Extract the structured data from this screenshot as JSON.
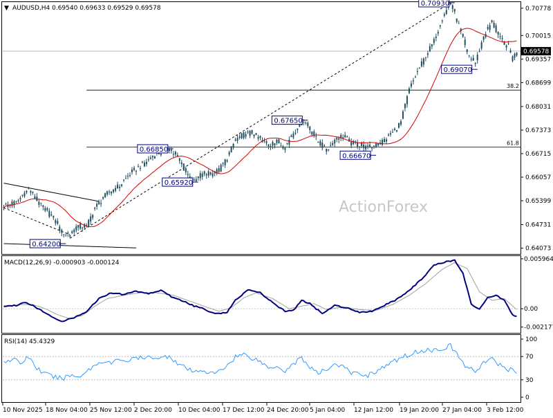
{
  "header": {
    "symbol_arrow": "▼",
    "title": "AUDUSD,H4  0.69540 0.69633 0.69529 0.69578"
  },
  "watermark": "ActionForex",
  "colors": {
    "candle": "#1f4e5f",
    "ma": "#d40000",
    "macd": "#000080",
    "signal": "#a0a0a0",
    "rsi": "#1e90ff",
    "callout": "#000080",
    "trend": "#000000",
    "price_tag": "#000000"
  },
  "chart_data": [
    {
      "type": "candlestick",
      "title": "AUDUSD,H4",
      "ylim": [
        0.6393,
        0.7093
      ],
      "y_ticks": [
        "0.70778",
        "0.70015",
        "0.69357",
        "0.68699",
        "0.68031",
        "0.67373",
        "0.66715",
        "0.66057",
        "0.65399",
        "0.64731",
        "0.64073"
      ],
      "current_price": "0.69578",
      "current_price_value": 0.69578,
      "price_path": [
        [
          0,
          0.6525
        ],
        [
          6,
          0.6535
        ],
        [
          12,
          0.6572
        ],
        [
          18,
          0.6525
        ],
        [
          24,
          0.6491
        ],
        [
          28,
          0.6452
        ],
        [
          32,
          0.6445
        ],
        [
          36,
          0.647
        ],
        [
          40,
          0.6468
        ],
        [
          44,
          0.652
        ],
        [
          50,
          0.656
        ],
        [
          56,
          0.6582
        ],
        [
          62,
          0.662
        ],
        [
          68,
          0.6646
        ],
        [
          74,
          0.667
        ],
        [
          80,
          0.6685
        ],
        [
          84,
          0.666
        ],
        [
          88,
          0.662
        ],
        [
          92,
          0.6592
        ],
        [
          96,
          0.6618
        ],
        [
          100,
          0.6612
        ],
        [
          104,
          0.6625
        ],
        [
          108,
          0.666
        ],
        [
          112,
          0.671
        ],
        [
          116,
          0.6725
        ],
        [
          120,
          0.673
        ],
        [
          124,
          0.6712
        ],
        [
          128,
          0.6695
        ],
        [
          132,
          0.6705
        ],
        [
          136,
          0.669
        ],
        [
          140,
          0.673
        ],
        [
          145,
          0.6765
        ],
        [
          148,
          0.674
        ],
        [
          152,
          0.6705
        ],
        [
          156,
          0.668
        ],
        [
          160,
          0.671
        ],
        [
          164,
          0.6722
        ],
        [
          168,
          0.67
        ],
        [
          172,
          0.6696
        ],
        [
          176,
          0.6688
        ],
        [
          180,
          0.6694
        ],
        [
          184,
          0.671
        ],
        [
          188,
          0.673
        ],
        [
          192,
          0.676
        ],
        [
          196,
          0.685
        ],
        [
          200,
          0.69
        ],
        [
          204,
          0.6945
        ],
        [
          208,
          0.6985
        ],
        [
          212,
          0.705
        ],
        [
          216,
          0.7093
        ],
        [
          220,
          0.703
        ],
        [
          224,
          0.695
        ],
        [
          228,
          0.6925
        ],
        [
          232,
          0.7
        ],
        [
          236,
          0.704
        ],
        [
          240,
          0.699
        ],
        [
          244,
          0.697
        ],
        [
          246,
          0.6935
        ],
        [
          248,
          0.6958
        ]
      ],
      "callouts": [
        {
          "label": "0.70930",
          "bar": 216,
          "price": 0.7093,
          "side": "left"
        },
        {
          "label": "0.69070",
          "bar": 227,
          "price": 0.6907,
          "side": "left"
        },
        {
          "label": "0.67650",
          "bar": 145,
          "price": 0.6765,
          "side": "left"
        },
        {
          "label": "0.66850",
          "bar": 80,
          "price": 0.6685,
          "side": "left"
        },
        {
          "label": "0.66670",
          "bar": 178,
          "price": 0.6667,
          "side": "left"
        },
        {
          "label": "0.65920",
          "bar": 92,
          "price": 0.6592,
          "side": "left"
        },
        {
          "label": "0.64200",
          "bar": 28,
          "price": 0.642,
          "side": "left"
        }
      ],
      "fib_levels": [
        {
          "label": "38.2",
          "price": 0.6849
        },
        {
          "label": "61.8",
          "price": 0.669
        }
      ],
      "trend_lines": [
        {
          "from": [
            0,
            0.6589
          ],
          "to": [
            46,
            0.6538
          ],
          "style": "solid"
        },
        {
          "from": [
            0,
            0.642
          ],
          "to": [
            64,
            0.6408
          ],
          "style": "solid"
        },
        {
          "from": [
            0,
            0.652
          ],
          "to": [
            32,
            0.6445
          ],
          "style": "dashed"
        },
        {
          "from": [
            32,
            0.6435
          ],
          "to": [
            216,
            0.7093
          ],
          "style": "dashed"
        }
      ]
    },
    {
      "type": "line",
      "title": "MACD(12,26,9) -0.000903 -0.000124",
      "ylim": [
        -0.0028,
        0.0062
      ],
      "y_ticks": [
        "0.005964",
        "0.00",
        "-0.002177"
      ],
      "macd_path": [
        [
          0,
          0.0003
        ],
        [
          6,
          0.0004
        ],
        [
          10,
          0.0008
        ],
        [
          14,
          0.0004
        ],
        [
          18,
          -0.0002
        ],
        [
          22,
          -0.0008
        ],
        [
          28,
          -0.0015
        ],
        [
          34,
          -0.0011
        ],
        [
          40,
          -0.0003
        ],
        [
          46,
          0.0012
        ],
        [
          52,
          0.0019
        ],
        [
          58,
          0.0017
        ],
        [
          64,
          0.0021
        ],
        [
          70,
          0.0018
        ],
        [
          76,
          0.0022
        ],
        [
          82,
          0.0013
        ],
        [
          88,
          0.0008
        ],
        [
          92,
          0.0003
        ],
        [
          96,
          0.0001
        ],
        [
          100,
          -0.0004
        ],
        [
          104,
          -0.0006
        ],
        [
          108,
          -0.0004
        ],
        [
          112,
          0.001
        ],
        [
          118,
          0.0023
        ],
        [
          124,
          0.0019
        ],
        [
          130,
          0.0007
        ],
        [
          136,
          -0.0003
        ],
        [
          140,
          -0.0002
        ],
        [
          144,
          0.001
        ],
        [
          148,
          0.0006
        ],
        [
          154,
          -0.0006
        ],
        [
          160,
          0.0004
        ],
        [
          166,
          0.0001
        ],
        [
          172,
          -0.0004
        ],
        [
          178,
          -0.0003
        ],
        [
          184,
          0.0004
        ],
        [
          190,
          0.0011
        ],
        [
          196,
          0.0022
        ],
        [
          202,
          0.0035
        ],
        [
          208,
          0.0052
        ],
        [
          214,
          0.0056
        ],
        [
          218,
          0.0058
        ],
        [
          222,
          0.0043
        ],
        [
          226,
          0.0005
        ],
        [
          230,
          -0.0001
        ],
        [
          234,
          0.0013
        ],
        [
          238,
          0.0016
        ],
        [
          242,
          0.001
        ],
        [
          246,
          -0.0007
        ],
        [
          248,
          -0.0009
        ]
      ],
      "signal_path": [
        [
          0,
          0.0002
        ],
        [
          8,
          0.0005
        ],
        [
          14,
          0.0005
        ],
        [
          20,
          0.0
        ],
        [
          26,
          -0.0007
        ],
        [
          32,
          -0.0012
        ],
        [
          38,
          -0.0008
        ],
        [
          44,
          0.0003
        ],
        [
          50,
          0.0012
        ],
        [
          58,
          0.0016
        ],
        [
          66,
          0.0019
        ],
        [
          74,
          0.0019
        ],
        [
          82,
          0.0016
        ],
        [
          90,
          0.0009
        ],
        [
          98,
          0.0002
        ],
        [
          104,
          -0.0003
        ],
        [
          110,
          0.0001
        ],
        [
          116,
          0.0013
        ],
        [
          122,
          0.0019
        ],
        [
          130,
          0.0012
        ],
        [
          138,
          0.0
        ],
        [
          144,
          0.0003
        ],
        [
          150,
          0.0006
        ],
        [
          156,
          -0.0001
        ],
        [
          164,
          0.0002
        ],
        [
          172,
          -0.0001
        ],
        [
          180,
          -0.0002
        ],
        [
          188,
          0.0005
        ],
        [
          196,
          0.0016
        ],
        [
          204,
          0.003
        ],
        [
          212,
          0.0047
        ],
        [
          218,
          0.0055
        ],
        [
          224,
          0.0048
        ],
        [
          230,
          0.002
        ],
        [
          236,
          0.001
        ],
        [
          242,
          0.0012
        ],
        [
          248,
          -0.0001
        ]
      ]
    },
    {
      "type": "line",
      "title": "RSI(14) 45.4329",
      "ylim": [
        0,
        100
      ],
      "y_ticks": [
        "100",
        "70",
        "30",
        "0"
      ],
      "levels": [
        70,
        30
      ],
      "rsi_path": [
        [
          0,
          62
        ],
        [
          4,
          66
        ],
        [
          8,
          58
        ],
        [
          12,
          70
        ],
        [
          16,
          50
        ],
        [
          20,
          40
        ],
        [
          24,
          35
        ],
        [
          28,
          32
        ],
        [
          32,
          38
        ],
        [
          36,
          35
        ],
        [
          40,
          45
        ],
        [
          44,
          55
        ],
        [
          48,
          63
        ],
        [
          52,
          58
        ],
        [
          56,
          66
        ],
        [
          60,
          62
        ],
        [
          64,
          68
        ],
        [
          68,
          66
        ],
        [
          72,
          70
        ],
        [
          76,
          67
        ],
        [
          80,
          72
        ],
        [
          84,
          58
        ],
        [
          88,
          50
        ],
        [
          92,
          42
        ],
        [
          96,
          48
        ],
        [
          100,
          40
        ],
        [
          104,
          44
        ],
        [
          108,
          55
        ],
        [
          112,
          70
        ],
        [
          116,
          74
        ],
        [
          120,
          68
        ],
        [
          124,
          62
        ],
        [
          128,
          50
        ],
        [
          132,
          55
        ],
        [
          136,
          45
        ],
        [
          140,
          58
        ],
        [
          144,
          68
        ],
        [
          148,
          52
        ],
        [
          152,
          40
        ],
        [
          156,
          48
        ],
        [
          160,
          58
        ],
        [
          164,
          52
        ],
        [
          168,
          42
        ],
        [
          172,
          40
        ],
        [
          176,
          38
        ],
        [
          180,
          45
        ],
        [
          184,
          52
        ],
        [
          188,
          60
        ],
        [
          192,
          68
        ],
        [
          196,
          74
        ],
        [
          200,
          78
        ],
        [
          204,
          82
        ],
        [
          208,
          80
        ],
        [
          212,
          85
        ],
        [
          216,
          88
        ],
        [
          220,
          70
        ],
        [
          224,
          50
        ],
        [
          228,
          45
        ],
        [
          232,
          60
        ],
        [
          236,
          65
        ],
        [
          240,
          55
        ],
        [
          244,
          48
        ],
        [
          248,
          45
        ]
      ]
    }
  ],
  "x_axis": {
    "total_bars": 250,
    "labels": [
      {
        "text": "10 Nov 2025",
        "bar": 0
      },
      {
        "text": "18 Nov 04:00",
        "bar": 26
      },
      {
        "text": "25 Nov 12:00",
        "bar": 52
      },
      {
        "text": "2 Dec 20:00",
        "bar": 78
      },
      {
        "text": "10 Dec 04:00",
        "bar": 104
      },
      {
        "text": "17 Dec 12:00",
        "bar": 130
      },
      {
        "text": "24 Dec 20:00",
        "bar": 154
      },
      {
        "text": "5 Jan 04:00",
        "bar": 176
      },
      {
        "text": "12 Jan 12:00",
        "bar": 198
      },
      {
        "text": "19 Jan 20:00",
        "bar": 222
      },
      {
        "text": "27 Jan 04:00",
        "bar": 246
      },
      {
        "text": "3 Feb 12:00",
        "bar": 270
      }
    ]
  }
}
